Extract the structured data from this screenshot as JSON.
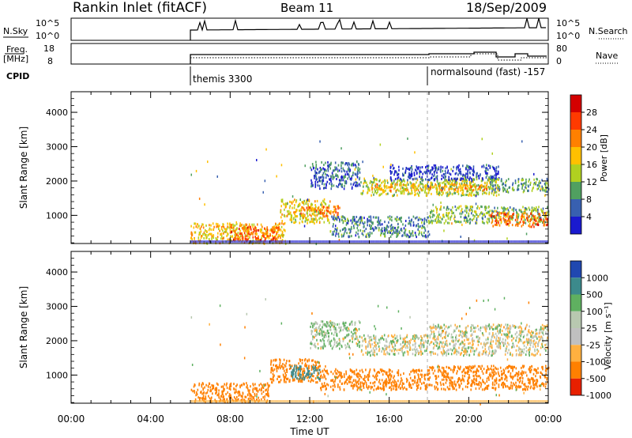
{
  "header": {
    "title": "Rankin Inlet (fitACF)",
    "beam": "Beam 11",
    "date": "18/Sep/2009"
  },
  "status_panels": {
    "nsky_label": "N.Sky",
    "nsky_ticks": [
      "10^5",
      "10^0"
    ],
    "nsearch_label": "N.Search",
    "freq_label": "Freq.",
    "freq_unit": "[MHz]",
    "freq_ticks": [
      "18",
      "8"
    ],
    "nave_ticks": [
      "80",
      "0"
    ],
    "nave_label": "Nave",
    "cpid_label": "CPID",
    "cpid_entries": [
      {
        "name": "themis 3300",
        "start_hour": 6.0
      },
      {
        "name": "normalsound (fast) -157",
        "start_hour": 18.0
      }
    ]
  },
  "colorbars": {
    "power": {
      "label": "Power [dB]",
      "ticks": [
        "28",
        "24",
        "20",
        "16",
        "12",
        "8",
        "4"
      ],
      "colors": [
        "#d40000",
        "#ff3a00",
        "#ff8000",
        "#ffc000",
        "#b0d020",
        "#50a060",
        "#3860b0",
        "#1a1acf"
      ]
    },
    "velocity": {
      "label": "Velocity [m s⁻¹]",
      "ticks": [
        "1000",
        "500",
        "100",
        "25",
        "-25",
        "-100",
        "-500",
        "-1000"
      ],
      "colors": [
        "#2048b0",
        "#3c8a8c",
        "#5fb060",
        "#b8c8b0",
        "#c0c0c0",
        "#ffb040",
        "#ff8000",
        "#e82000"
      ]
    }
  },
  "chart_data": [
    {
      "type": "heatmap",
      "name": "power",
      "ylabel": "Slant Range [km]",
      "xlim": [
        0,
        24
      ],
      "ylim": [
        180,
        4600
      ],
      "yticks": [
        "1000",
        "2000",
        "3000",
        "4000"
      ],
      "data_start_hour": 6.0,
      "marker_hour": 18.0,
      "echo_regions": [
        {
          "x0": 6.0,
          "x1": 10.8,
          "y0": 200,
          "y1": 800,
          "level": 20
        },
        {
          "x0": 8.0,
          "x1": 10.5,
          "y0": 300,
          "y1": 700,
          "level": 26
        },
        {
          "x0": 10.5,
          "x1": 13.0,
          "y0": 800,
          "y1": 1500,
          "level": 18
        },
        {
          "x0": 11.5,
          "x1": 13.5,
          "y0": 1000,
          "y1": 1300,
          "level": 24
        },
        {
          "x0": 12.0,
          "x1": 14.5,
          "y0": 1800,
          "y1": 2600,
          "level": 8
        },
        {
          "x0": 14.5,
          "x1": 21.5,
          "y0": 1600,
          "y1": 2100,
          "level": 16
        },
        {
          "x0": 15.0,
          "x1": 21.0,
          "y0": 1750,
          "y1": 1950,
          "level": 22
        },
        {
          "x0": 16.0,
          "x1": 21.5,
          "y0": 2050,
          "y1": 2500,
          "level": 6
        },
        {
          "x0": 18.0,
          "x1": 24.0,
          "y0": 800,
          "y1": 1300,
          "level": 14
        },
        {
          "x0": 21.0,
          "x1": 24.0,
          "y0": 700,
          "y1": 1100,
          "level": 26
        },
        {
          "x0": 21.0,
          "x1": 24.0,
          "y0": 1700,
          "y1": 2100,
          "level": 12
        },
        {
          "x0": 13.0,
          "x1": 18.0,
          "y0": 400,
          "y1": 1000,
          "level": 10
        }
      ]
    },
    {
      "type": "heatmap",
      "name": "velocity",
      "ylabel": "Slant Range [km]",
      "xlabel": "Time UT",
      "xlim": [
        0,
        24
      ],
      "ylim": [
        180,
        4600
      ],
      "yticks": [
        "1000",
        "2000",
        "3000",
        "4000"
      ],
      "xticks": [
        "00:00",
        "04:00",
        "08:00",
        "12:00",
        "16:00",
        "20:00",
        "00:00"
      ],
      "data_start_hour": 6.0,
      "marker_hour": 18.0,
      "echo_regions": [
        {
          "x0": 6.0,
          "x1": 10.0,
          "y0": 250,
          "y1": 800,
          "level": -300
        },
        {
          "x0": 10.0,
          "x1": 12.5,
          "y0": 800,
          "y1": 1500,
          "level": -400
        },
        {
          "x0": 11.0,
          "x1": 12.5,
          "y0": 900,
          "y1": 1300,
          "level": 600
        },
        {
          "x0": 12.0,
          "x1": 14.5,
          "y0": 1800,
          "y1": 2600,
          "level": 60
        },
        {
          "x0": 14.5,
          "x1": 24.0,
          "y0": 1600,
          "y1": 2200,
          "level": 0
        },
        {
          "x0": 12.5,
          "x1": 18.0,
          "y0": 600,
          "y1": 1200,
          "level": -400
        },
        {
          "x0": 18.0,
          "x1": 24.0,
          "y0": 600,
          "y1": 1300,
          "level": -400
        },
        {
          "x0": 18.0,
          "x1": 24.0,
          "y0": 2200,
          "y1": 2500,
          "level": 10
        }
      ]
    }
  ]
}
